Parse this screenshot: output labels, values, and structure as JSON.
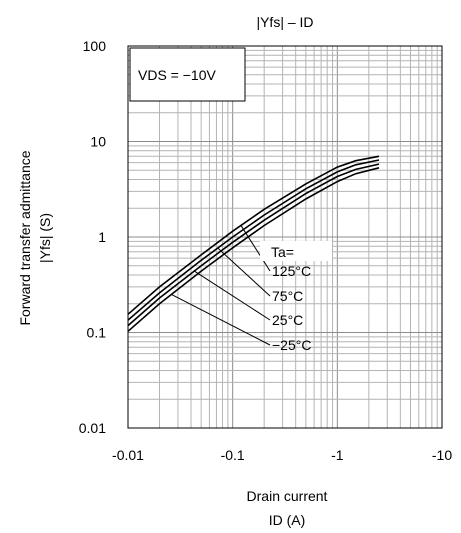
{
  "chart_data": {
    "type": "line",
    "title": "|Yfs| – ID",
    "xlabel_line1": "Drain current",
    "xlabel_line2": "ID (A)",
    "ylabel_line1": "Forward transfer admittance",
    "ylabel_line2": "|Yfs| (S)",
    "x_scale": "log",
    "y_scale": "log",
    "xlim": [
      -0.01,
      -10
    ],
    "ylim": [
      0.01,
      100
    ],
    "x_ticks": [
      "-0.01",
      "-0.1",
      "-1",
      "-10"
    ],
    "y_ticks": [
      "0.01",
      "0.1",
      "1",
      "10",
      "100"
    ],
    "grid": true,
    "condition": "VDS = −10V",
    "legend_title": "Ta=",
    "series": [
      {
        "name": "125°C",
        "x": [
          -0.01,
          -0.02,
          -0.05,
          -0.1,
          -0.2,
          -0.5,
          -1,
          -1.5,
          -2.5
        ],
        "y": [
          0.155,
          0.3,
          0.65,
          1.15,
          1.95,
          3.6,
          5.4,
          6.3,
          7.0
        ]
      },
      {
        "name": "75°C",
        "x": [
          -0.01,
          -0.02,
          -0.05,
          -0.1,
          -0.2,
          -0.5,
          -1,
          -1.5,
          -2.5
        ],
        "y": [
          0.135,
          0.26,
          0.57,
          1.0,
          1.7,
          3.2,
          4.8,
          5.7,
          6.4
        ]
      },
      {
        "name": "25°C",
        "x": [
          -0.01,
          -0.02,
          -0.05,
          -0.1,
          -0.2,
          -0.5,
          -1,
          -1.5,
          -2.5
        ],
        "y": [
          0.118,
          0.23,
          0.5,
          0.88,
          1.5,
          2.85,
          4.3,
          5.1,
          5.8
        ]
      },
      {
        "name": "−25°C",
        "x": [
          -0.01,
          -0.02,
          -0.05,
          -0.1,
          -0.2,
          -0.5,
          -1,
          -1.5,
          -2.5
        ],
        "y": [
          0.103,
          0.2,
          0.44,
          0.77,
          1.32,
          2.5,
          3.8,
          4.6,
          5.3
        ]
      }
    ],
    "leaders": [
      {
        "series": "125°C",
        "x": -0.12
      },
      {
        "series": "75°C",
        "x": -0.072
      },
      {
        "series": "25°C",
        "x": -0.043
      },
      {
        "series": "−25°C",
        "x": -0.026
      }
    ]
  }
}
